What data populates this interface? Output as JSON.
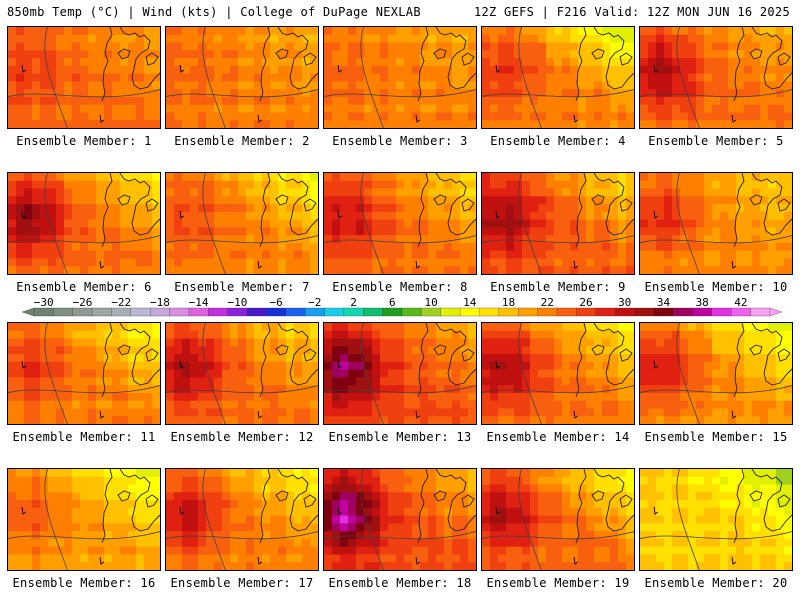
{
  "header": {
    "left": "850mb Temp (°C) | Wind (kts) | College of DuPage NEXLAB",
    "right": "12Z GEFS | F216 Valid: 12Z MON JUN 16 2025"
  },
  "colorbar": {
    "labels": [
      "−30",
      "−26",
      "−22",
      "−18",
      "−14",
      "−10",
      "−6",
      "−2",
      "2",
      "6",
      "10",
      "14",
      "18",
      "22",
      "26",
      "30",
      "34",
      "38",
      "42"
    ],
    "colors": [
      "#6f8272",
      "#7c8f7f",
      "#8c9a90",
      "#9aa6a2",
      "#a7b0ba",
      "#b9b9d6",
      "#c7a7e0",
      "#d78ee0",
      "#e060e0",
      "#c030e0",
      "#8a20e0",
      "#4a18c8",
      "#1530d8",
      "#1a60f0",
      "#18a0f0",
      "#16d0e8",
      "#10d8b0",
      "#10c070",
      "#20a020",
      "#58b818",
      "#a0d020",
      "#e0f000",
      "#ffff00",
      "#ffe000",
      "#ffc000",
      "#ffa000",
      "#ff8000",
      "#f86010",
      "#f04010",
      "#e02010",
      "#c01010",
      "#a01010",
      "#800010",
      "#a00060",
      "#c000a0",
      "#e030e0",
      "#f060f0",
      "#f8a0f0"
    ]
  },
  "members": [
    {
      "label": "Ensemble Member: 1",
      "base": 20,
      "warm_core": 2,
      "cool_ne": 2
    },
    {
      "label": "Ensemble Member: 2",
      "base": 19,
      "warm_core": 1,
      "cool_ne": 2
    },
    {
      "label": "Ensemble Member: 3",
      "base": 19,
      "warm_core": 1,
      "cool_ne": 2
    },
    {
      "label": "Ensemble Member: 4",
      "base": 19,
      "warm_core": 3,
      "cool_ne": 8
    },
    {
      "label": "Ensemble Member: 5",
      "base": 20,
      "warm_core": 5,
      "cool_ne": 3
    },
    {
      "label": "Ensemble Member: 6",
      "base": 20,
      "warm_core": 6,
      "cool_ne": 5
    },
    {
      "label": "Ensemble Member: 7",
      "base": 19,
      "warm_core": 2,
      "cool_ne": 6
    },
    {
      "label": "Ensemble Member: 8",
      "base": 20,
      "warm_core": 4,
      "cool_ne": 5
    },
    {
      "label": "Ensemble Member: 9",
      "base": 21,
      "warm_core": 5,
      "cool_ne": 6
    },
    {
      "label": "Ensemble Member: 10",
      "base": 18,
      "warm_core": 4,
      "cool_ne": 3
    },
    {
      "label": "Ensemble Member: 11",
      "base": 19,
      "warm_core": 3,
      "cool_ne": 6
    },
    {
      "label": "Ensemble Member: 12",
      "base": 20,
      "warm_core": 5,
      "cool_ne": 5
    },
    {
      "label": "Ensemble Member: 13",
      "base": 22,
      "warm_core": 7,
      "cool_ne": 4
    },
    {
      "label": "Ensemble Member: 14",
      "base": 20,
      "warm_core": 5,
      "cool_ne": 6
    },
    {
      "label": "Ensemble Member: 15",
      "base": 18,
      "warm_core": 5,
      "cool_ne": 6
    },
    {
      "label": "Ensemble Member: 16",
      "base": 17,
      "warm_core": 3,
      "cool_ne": 6
    },
    {
      "label": "Ensemble Member: 17",
      "base": 19,
      "warm_core": 5,
      "cool_ne": 6
    },
    {
      "label": "Ensemble Member: 18",
      "base": 22,
      "warm_core": 8,
      "cool_ne": 5
    },
    {
      "label": "Ensemble Member: 19",
      "base": 20,
      "warm_core": 5,
      "cool_ne": 7
    },
    {
      "label": "Ensemble Member: 20",
      "base": 14,
      "warm_core": 0,
      "cool_ne": 5
    }
  ]
}
